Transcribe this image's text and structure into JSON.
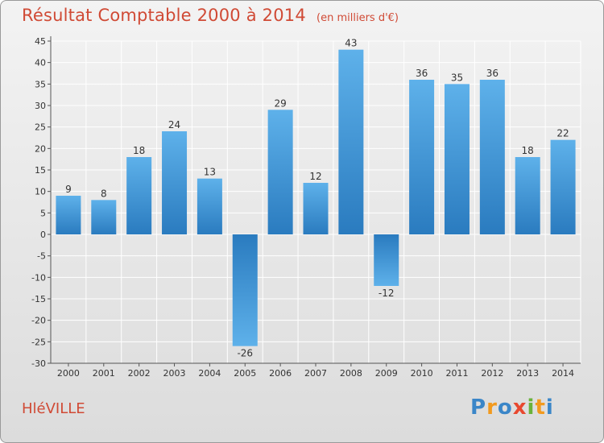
{
  "chart_data": {
    "type": "bar",
    "title": "Résultat Comptable 2000 à 2014",
    "subtitle": "(en milliers d'€)",
    "categories": [
      "2000",
      "2001",
      "2002",
      "2003",
      "2004",
      "2005",
      "2006",
      "2007",
      "2008",
      "2009",
      "2010",
      "2011",
      "2012",
      "2013",
      "2014"
    ],
    "values": [
      9,
      8,
      18,
      24,
      13,
      -26,
      29,
      12,
      43,
      -12,
      36,
      35,
      36,
      18,
      22
    ],
    "ylim": [
      -30,
      45
    ],
    "yticks": [
      45,
      40,
      35,
      30,
      25,
      20,
      15,
      10,
      5,
      0,
      -5,
      -10,
      -15,
      -20,
      -25,
      -30
    ],
    "xlabel": "",
    "ylabel": "",
    "grid": true,
    "colors": {
      "bar_light": "#5eb1ea",
      "bar_dark": "#2a7bbf",
      "grid": "#ffffff",
      "title": "#d04a35"
    }
  },
  "footer": {
    "town": "HléVILLE",
    "logo_letters": [
      "P",
      "r",
      "o",
      "x",
      "i",
      "t",
      "i"
    ],
    "logo_colors": [
      "#3a86c8",
      "#f29a1e",
      "#3a86c8",
      "#e8482f",
      "#6ab23a",
      "#f29a1e",
      "#3a86c8"
    ]
  }
}
